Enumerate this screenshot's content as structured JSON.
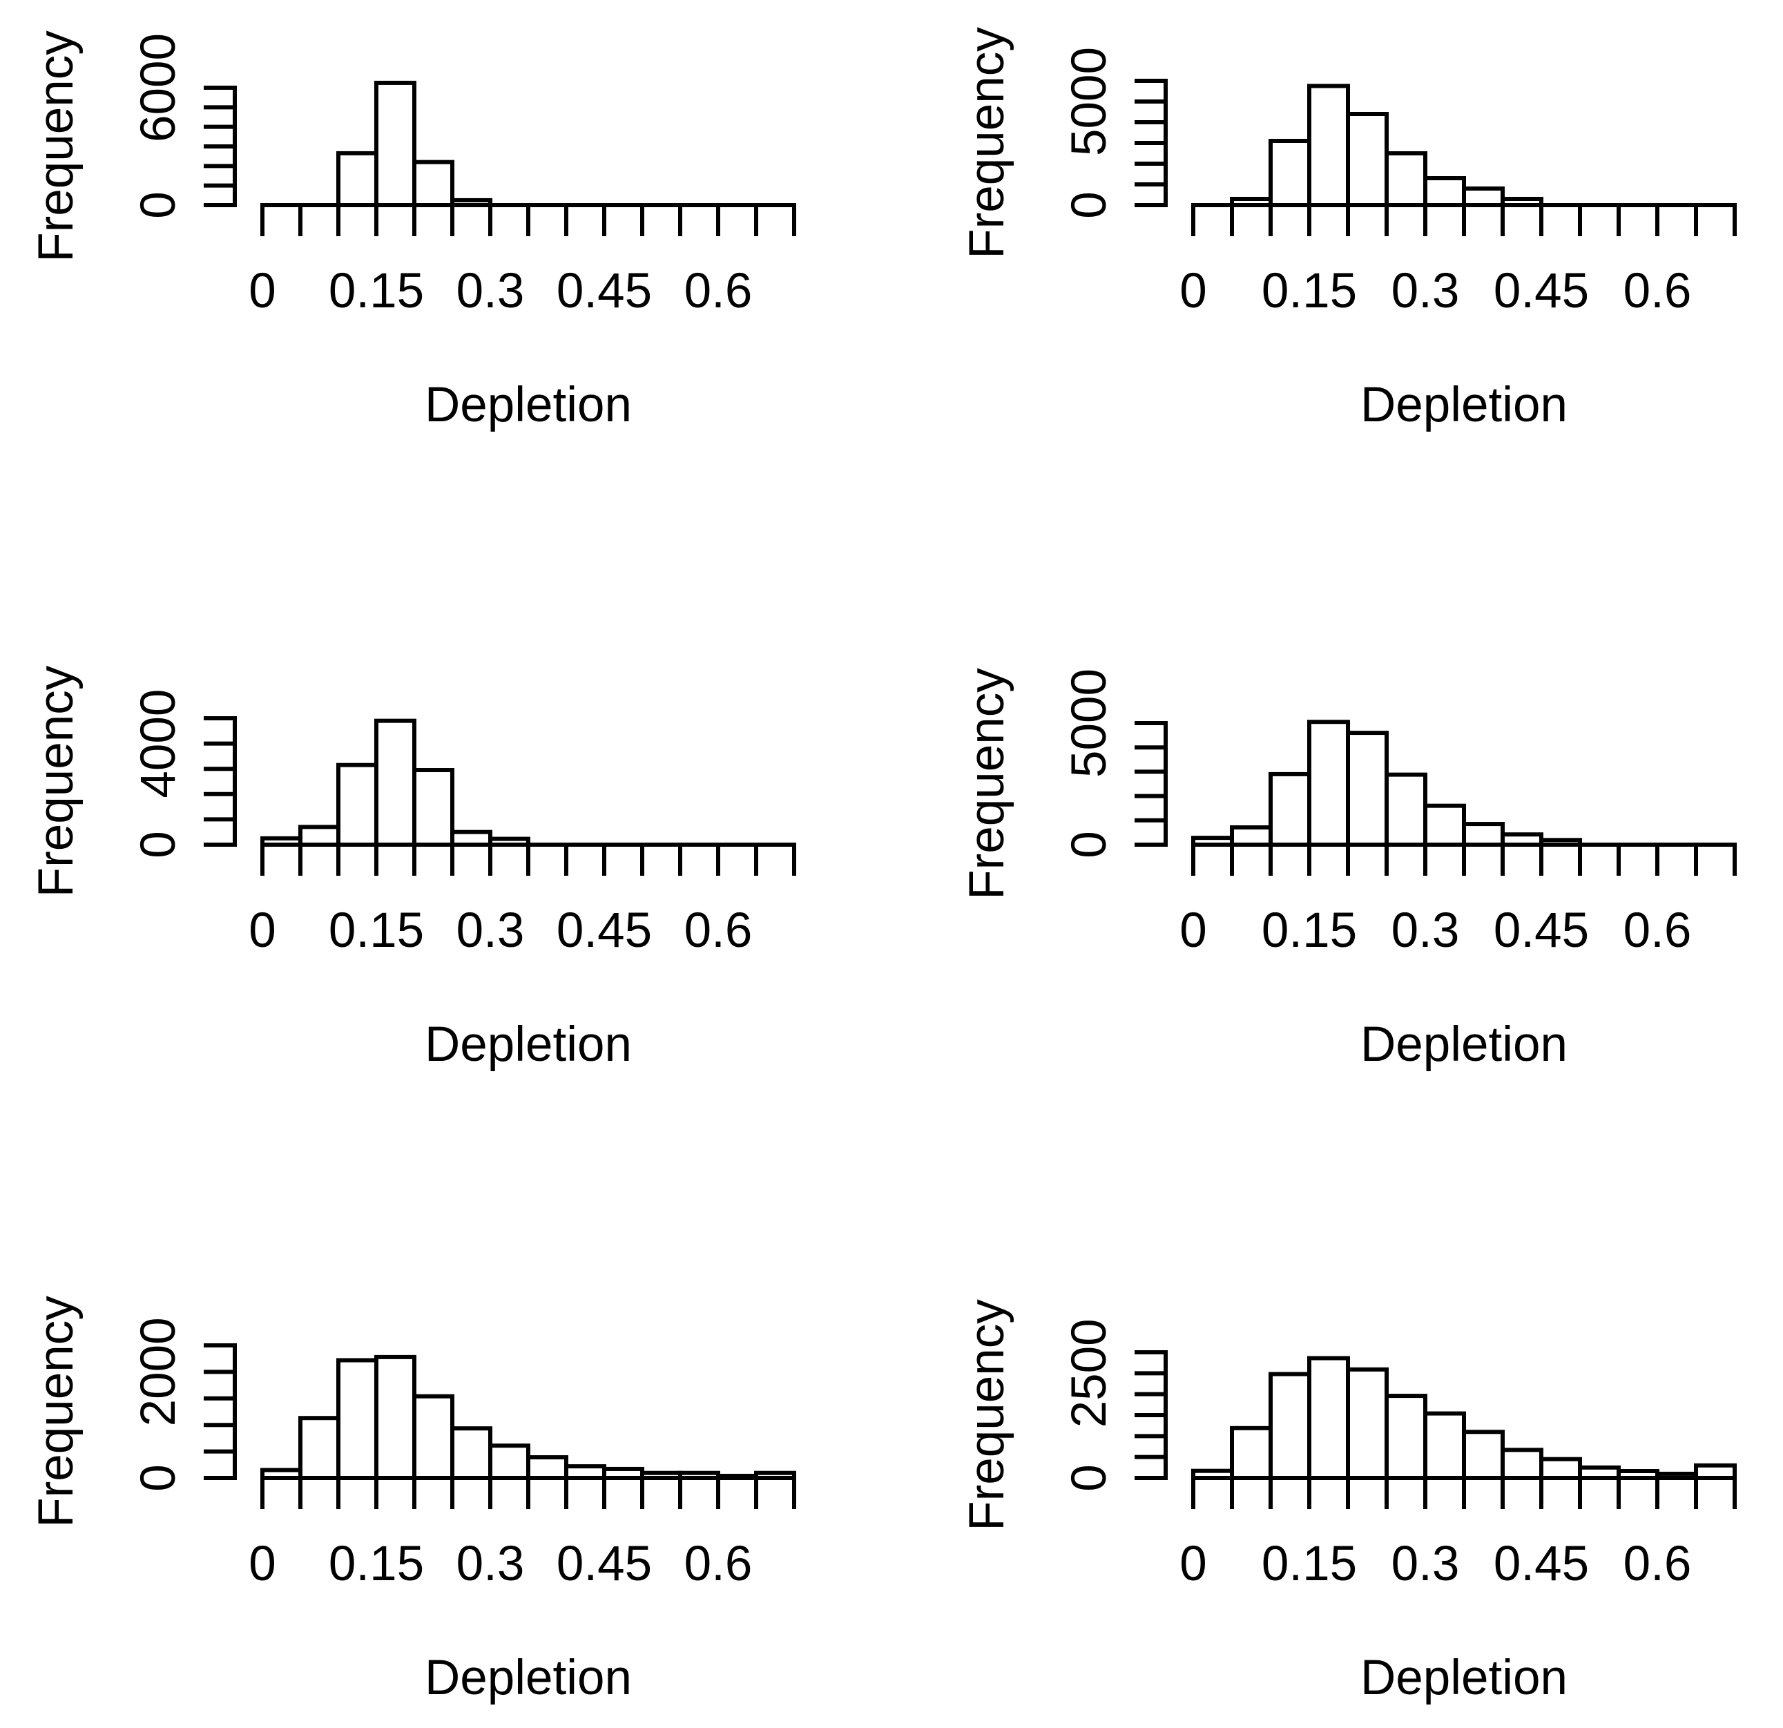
{
  "figure": {
    "grid": {
      "rows": 3,
      "cols": 2
    },
    "background": "#ffffff",
    "ink_color": "#000000"
  },
  "chart_data": [
    {
      "type": "bar",
      "subtype": "histogram",
      "position": {
        "row": 0,
        "col": 0
      },
      "xlabel": "Depletion",
      "ylabel": "Frequency",
      "bins": {
        "start": 0,
        "width": 0.05,
        "counts": [
          0,
          0,
          2650,
          6250,
          2200,
          250,
          0,
          0,
          0,
          0,
          0,
          0,
          0,
          0
        ]
      },
      "x_axis": {
        "min": 0,
        "max": 0.7,
        "tick_step": 0.05,
        "labels": [
          {
            "value": 0,
            "text": "0"
          },
          {
            "value": 0.15,
            "text": "0.15"
          },
          {
            "value": 0.3,
            "text": "0.3"
          },
          {
            "value": 0.45,
            "text": "0.45"
          },
          {
            "value": 0.6,
            "text": "0.6"
          }
        ]
      },
      "y_axis": {
        "min": 0,
        "max": 6000,
        "tick_step": 1000,
        "labels": [
          {
            "value": 0,
            "text": "0"
          },
          {
            "value": 6000,
            "text": "6000"
          }
        ]
      },
      "ylim": [
        0,
        6000
      ],
      "grid_lines": false
    },
    {
      "type": "bar",
      "subtype": "histogram",
      "position": {
        "row": 0,
        "col": 1
      },
      "xlabel": "Depletion",
      "ylabel": "Frequency",
      "bins": {
        "start": 0,
        "width": 0.05,
        "counts": [
          0,
          300,
          3100,
          5750,
          4400,
          2500,
          1300,
          800,
          300,
          0,
          0,
          0,
          0,
          0
        ]
      },
      "x_axis": {
        "min": 0,
        "max": 0.7,
        "tick_step": 0.05,
        "labels": [
          {
            "value": 0,
            "text": "0"
          },
          {
            "value": 0.15,
            "text": "0.15"
          },
          {
            "value": 0.3,
            "text": "0.3"
          },
          {
            "value": 0.45,
            "text": "0.45"
          },
          {
            "value": 0.6,
            "text": "0.6"
          }
        ]
      },
      "y_axis": {
        "min": 0,
        "max": 6000,
        "tick_step": 1000,
        "labels": [
          {
            "value": 0,
            "text": "0"
          },
          {
            "value": 5000,
            "text": "5000"
          }
        ]
      },
      "ylim": [
        0,
        6000
      ],
      "grid_lines": false
    },
    {
      "type": "bar",
      "subtype": "histogram",
      "position": {
        "row": 1,
        "col": 0
      },
      "xlabel": "Depletion",
      "ylabel": "Frequency",
      "bins": {
        "start": 0,
        "width": 0.05,
        "counts": [
          250,
          700,
          3150,
          4900,
          2950,
          500,
          230,
          0,
          0,
          0,
          0,
          0,
          0,
          0
        ]
      },
      "x_axis": {
        "min": 0,
        "max": 0.7,
        "tick_step": 0.05,
        "labels": [
          {
            "value": 0,
            "text": "0"
          },
          {
            "value": 0.15,
            "text": "0.15"
          },
          {
            "value": 0.3,
            "text": "0.3"
          },
          {
            "value": 0.45,
            "text": "0.45"
          },
          {
            "value": 0.6,
            "text": "0.6"
          }
        ]
      },
      "y_axis": {
        "min": 0,
        "max": 5000,
        "tick_step": 1000,
        "labels": [
          {
            "value": 0,
            "text": "0"
          },
          {
            "value": 4000,
            "text": "4000"
          }
        ]
      },
      "ylim": [
        0,
        5000
      ],
      "grid_lines": false
    },
    {
      "type": "bar",
      "subtype": "histogram",
      "position": {
        "row": 1,
        "col": 1
      },
      "xlabel": "Depletion",
      "ylabel": "Frequency",
      "bins": {
        "start": 0,
        "width": 0.05,
        "counts": [
          280,
          710,
          2900,
          5050,
          4600,
          2880,
          1600,
          850,
          420,
          190,
          0,
          0,
          0,
          0
        ]
      },
      "x_axis": {
        "min": 0,
        "max": 0.7,
        "tick_step": 0.05,
        "labels": [
          {
            "value": 0,
            "text": "0"
          },
          {
            "value": 0.15,
            "text": "0.15"
          },
          {
            "value": 0.3,
            "text": "0.3"
          },
          {
            "value": 0.45,
            "text": "0.45"
          },
          {
            "value": 0.6,
            "text": "0.6"
          }
        ]
      },
      "y_axis": {
        "min": 0,
        "max": 5000,
        "tick_step": 1000,
        "labels": [
          {
            "value": 0,
            "text": "0"
          },
          {
            "value": 5000,
            "text": "5000"
          }
        ]
      },
      "ylim": [
        0,
        5000
      ],
      "grid_lines": false
    },
    {
      "type": "bar",
      "subtype": "histogram",
      "position": {
        "row": 2,
        "col": 0
      },
      "xlabel": "Depletion",
      "ylabel": "Frequency",
      "bins": {
        "start": 0,
        "width": 0.05,
        "counts": [
          150,
          1130,
          2220,
          2280,
          1540,
          935,
          610,
          390,
          220,
          170,
          95,
          95,
          40,
          95
        ]
      },
      "x_axis": {
        "min": 0,
        "max": 0.7,
        "tick_step": 0.05,
        "labels": [
          {
            "value": 0,
            "text": "0"
          },
          {
            "value": 0.15,
            "text": "0.15"
          },
          {
            "value": 0.3,
            "text": "0.3"
          },
          {
            "value": 0.45,
            "text": "0.45"
          },
          {
            "value": 0.6,
            "text": "0.6"
          }
        ]
      },
      "y_axis": {
        "min": 0,
        "max": 2500,
        "tick_step": 500,
        "labels": [
          {
            "value": 0,
            "text": "0"
          },
          {
            "value": 2000,
            "text": "2000"
          }
        ]
      },
      "ylim": [
        0,
        2500
      ],
      "grid_lines": false
    },
    {
      "type": "bar",
      "subtype": "histogram",
      "position": {
        "row": 2,
        "col": 1
      },
      "xlabel": "Depletion",
      "ylabel": "Frequency",
      "bins": {
        "start": 0,
        "width": 0.05,
        "counts": [
          170,
          1190,
          2480,
          2860,
          2590,
          1960,
          1540,
          1100,
          670,
          450,
          250,
          165,
          100,
          300
        ]
      },
      "x_axis": {
        "min": 0,
        "max": 0.7,
        "tick_step": 0.05,
        "labels": [
          {
            "value": 0,
            "text": "0"
          },
          {
            "value": 0.15,
            "text": "0.15"
          },
          {
            "value": 0.3,
            "text": "0.3"
          },
          {
            "value": 0.45,
            "text": "0.45"
          },
          {
            "value": 0.6,
            "text": "0.6"
          }
        ]
      },
      "y_axis": {
        "min": 0,
        "max": 3000,
        "tick_step": 500,
        "labels": [
          {
            "value": 0,
            "text": "0"
          },
          {
            "value": 2500,
            "text": "2500"
          }
        ]
      },
      "ylim": [
        0,
        3000
      ],
      "grid_lines": false
    }
  ]
}
